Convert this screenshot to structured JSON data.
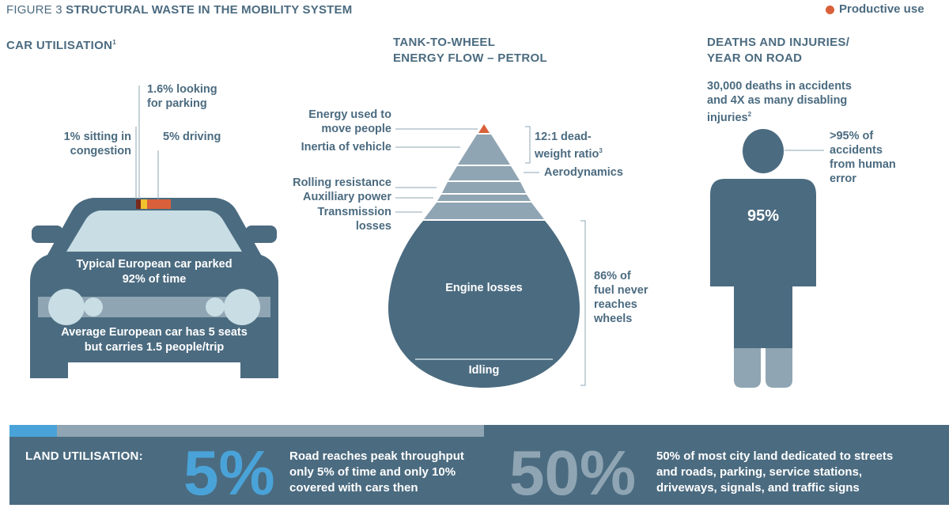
{
  "header": {
    "figure_label": "FIGURE 3",
    "title": "STRUCTURAL WASTE IN THE MOBILITY SYSTEM",
    "legend_label": "Productive use",
    "legend_color": "#d9603a"
  },
  "colors": {
    "slate": "#4b6b80",
    "light_slate": "#8fa5b3",
    "pale_blue": "#c8dde4",
    "accent_blue": "#4aa3d8",
    "orange": "#d9603a",
    "yellow": "#f2c12e",
    "dark_red": "#7a2a1e"
  },
  "car": {
    "title": "CAR UTILISATION",
    "title_note": "1",
    "looking_parking": "1.6% looking\nfor parking",
    "congestion": "1% sitting in\ncongestion",
    "driving": "5% driving",
    "parked": "Typical European car parked\n92% of time",
    "seats": "Average European car has 5 seats\nbut carries 1.5 people/trip"
  },
  "energy": {
    "title": "TANK-TO-WHEEL\nENERGY FLOW – PETROL",
    "move_people": "Energy used to\nmove people",
    "inertia": "Inertia of vehicle",
    "rolling": "Rolling resistance",
    "aux": "Auxilliary power",
    "transmission": "Transmission\nlosses",
    "ratio": "12:1 dead-\nweight ratio",
    "ratio_note": "3",
    "aero": "Aerodynamics",
    "engine": "Engine losses",
    "idling": "Idling",
    "never": "86% of\nfuel never\nreaches\nwheels"
  },
  "deaths": {
    "title": "DEATHS AND INJURIES/\nYEAR ON ROAD",
    "stat": "30,000 deaths in accidents\nand 4X as many disabling\ninjuries",
    "stat_note": "2",
    "human_error": ">95% of\naccidents\nfrom human\nerror",
    "pct": "95%"
  },
  "land": {
    "label": "LAND UTILISATION:",
    "pct1": "5%",
    "text1": "Road reaches peak throughput\nonly 5% of time and only 10%\ncovered with cars then",
    "pct2": "50%",
    "text2": "50% of most city land dedicated to streets\nand roads, parking, service stations,\ndriveways, signals, and traffic signs"
  }
}
